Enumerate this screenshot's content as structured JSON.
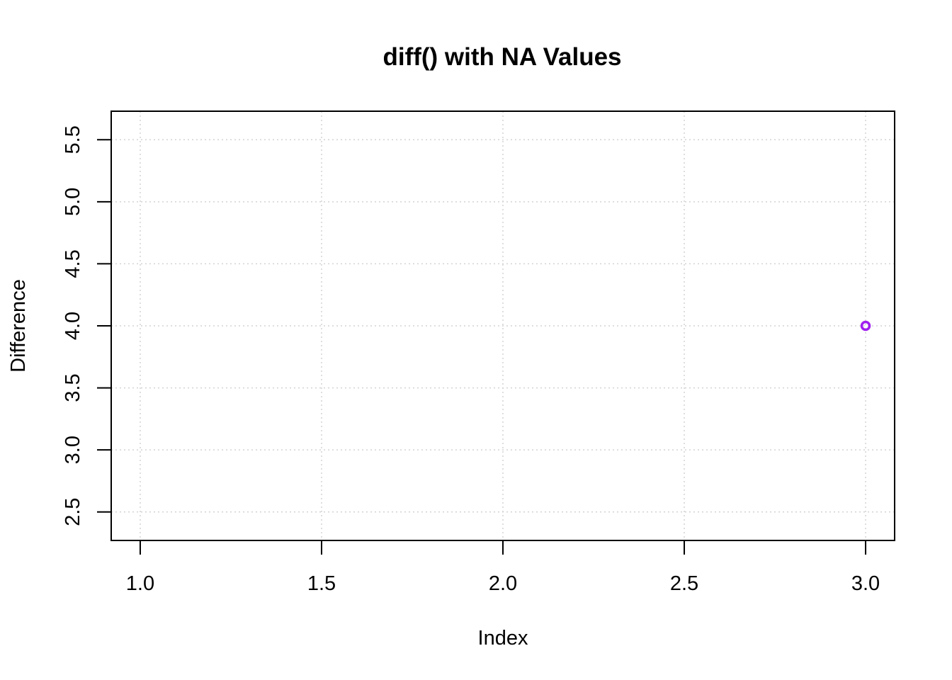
{
  "chart_data": {
    "type": "scatter",
    "title": "diff() with NA Values",
    "xlabel": "Index",
    "ylabel": "Difference",
    "xlim": [
      0.92,
      3.08
    ],
    "ylim": [
      2.27,
      5.73
    ],
    "x_ticks": [
      1.0,
      1.5,
      2.0,
      2.5,
      3.0
    ],
    "x_tick_labels": [
      "1.0",
      "1.5",
      "2.0",
      "2.5",
      "3.0"
    ],
    "y_ticks": [
      2.5,
      3.0,
      3.5,
      4.0,
      4.5,
      5.0,
      5.5
    ],
    "y_tick_labels": [
      "2.5",
      "3.0",
      "3.5",
      "4.0",
      "4.5",
      "5.0",
      "5.5"
    ],
    "grid": true,
    "series": [
      {
        "color": "#a020f0",
        "x": [
          1,
          2,
          3
        ],
        "y": [
          null,
          null,
          4.0
        ]
      }
    ]
  }
}
